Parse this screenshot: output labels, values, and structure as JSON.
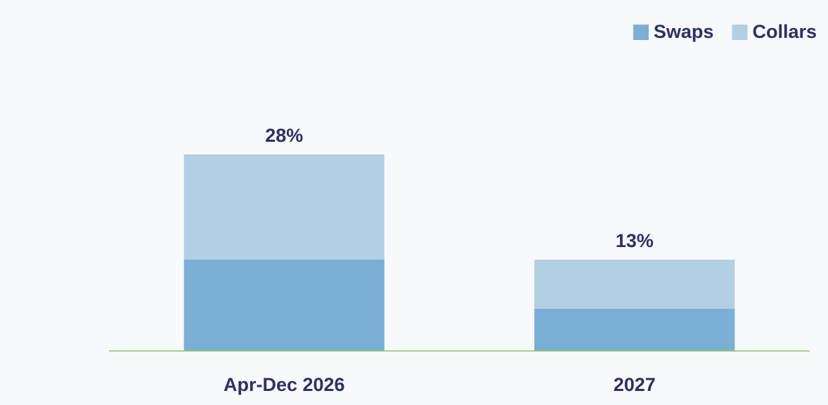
{
  "chart_data": {
    "type": "stacked_bar",
    "categories": [
      "Apr-Dec 2026",
      "2027"
    ],
    "series": [
      {
        "name": "Swaps",
        "color": "#7bafd4",
        "values": [
          13,
          6
        ]
      },
      {
        "name": "Collars",
        "color": "#b3cfe4",
        "values": [
          15,
          7
        ]
      }
    ],
    "total_labels": [
      "28%",
      "13%"
    ],
    "ylim": [
      0,
      40
    ],
    "legend": "top-right"
  }
}
